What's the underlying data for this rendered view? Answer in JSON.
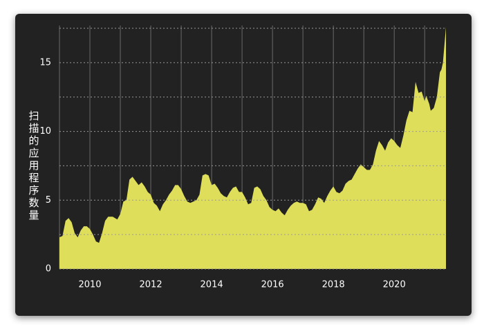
{
  "chart_data": {
    "type": "area",
    "y_label": "扫描的应用程序数量",
    "color": "#dede5a",
    "x": [
      2009.0,
      2009.1,
      2009.2,
      2009.3,
      2009.4,
      2009.5,
      2009.6,
      2009.7,
      2009.8,
      2009.9,
      2010.0,
      2010.1,
      2010.2,
      2010.3,
      2010.4,
      2010.5,
      2010.6,
      2010.75,
      2010.9,
      2011.0,
      2011.1,
      2011.2,
      2011.3,
      2011.4,
      2011.5,
      2011.6,
      2011.7,
      2011.8,
      2011.9,
      2012.0,
      2012.1,
      2012.2,
      2012.3,
      2012.4,
      2012.5,
      2012.6,
      2012.7,
      2012.8,
      2012.9,
      2013.0,
      2013.1,
      2013.2,
      2013.3,
      2013.4,
      2013.5,
      2013.6,
      2013.7,
      2013.8,
      2013.9,
      2014.0,
      2014.1,
      2014.2,
      2014.3,
      2014.4,
      2014.5,
      2014.6,
      2014.7,
      2014.8,
      2014.9,
      2015.0,
      2015.1,
      2015.2,
      2015.3,
      2015.4,
      2015.5,
      2015.6,
      2015.7,
      2015.8,
      2015.9,
      2016.0,
      2016.1,
      2016.2,
      2016.3,
      2016.4,
      2016.5,
      2016.6,
      2016.7,
      2016.8,
      2016.9,
      2017.0,
      2017.1,
      2017.2,
      2017.3,
      2017.4,
      2017.5,
      2017.6,
      2017.7,
      2017.8,
      2017.9,
      2018.0,
      2018.1,
      2018.2,
      2018.3,
      2018.4,
      2018.5,
      2018.6,
      2018.7,
      2018.8,
      2018.9,
      2019.0,
      2019.1,
      2019.2,
      2019.3,
      2019.4,
      2019.5,
      2019.6,
      2019.7,
      2019.8,
      2019.9,
      2020.0,
      2020.1,
      2020.2,
      2020.3,
      2020.4,
      2020.5,
      2020.6,
      2020.7,
      2020.8,
      2020.9,
      2021.0,
      2021.05,
      2021.15,
      2021.2,
      2021.3,
      2021.4,
      2021.5,
      2021.55,
      2021.6,
      2021.7
    ],
    "values": [
      2.3,
      2.4,
      3.5,
      3.7,
      3.4,
      2.6,
      2.3,
      2.8,
      3.1,
      3.1,
      2.9,
      2.5,
      2.0,
      1.9,
      2.6,
      3.5,
      3.8,
      3.8,
      3.6,
      4.0,
      4.9,
      5.0,
      6.5,
      6.7,
      6.4,
      6.1,
      6.3,
      6.0,
      5.6,
      5.4,
      4.8,
      4.6,
      4.2,
      4.7,
      5.0,
      5.4,
      5.7,
      6.1,
      6.1,
      5.8,
      5.3,
      4.9,
      4.8,
      4.9,
      5.0,
      5.4,
      6.8,
      6.9,
      6.8,
      6.1,
      6.2,
      5.9,
      5.5,
      5.3,
      5.2,
      5.6,
      5.9,
      6.0,
      5.6,
      5.6,
      5.2,
      4.7,
      4.8,
      5.9,
      6.0,
      5.8,
      5.3,
      5.0,
      4.5,
      4.3,
      4.2,
      4.4,
      4.1,
      3.9,
      4.3,
      4.6,
      4.8,
      4.9,
      4.8,
      4.8,
      4.7,
      4.2,
      4.3,
      4.7,
      5.2,
      5.1,
      4.8,
      5.3,
      5.7,
      6.0,
      5.6,
      5.5,
      5.7,
      6.2,
      6.4,
      6.5,
      6.9,
      7.3,
      7.6,
      7.4,
      7.2,
      7.2,
      7.6,
      8.6,
      9.3,
      9.0,
      8.6,
      9.2,
      9.5,
      9.3,
      9.0,
      8.8,
      9.7,
      10.8,
      11.5,
      11.4,
      13.6,
      12.8,
      12.9,
      12.2,
      12.6,
      12.0,
      11.5,
      11.7,
      12.5,
      14.3,
      14.5,
      15.0,
      17.6
    ],
    "xlim": [
      2009,
      2021.7
    ],
    "xticks": [
      2010,
      2012,
      2014,
      2016,
      2018,
      2020
    ],
    "xminorticks": [
      2009,
      2011,
      2013,
      2015,
      2017,
      2019,
      2021
    ],
    "ylim": [
      0,
      17.7
    ],
    "yticks": [
      0,
      5,
      10,
      15
    ],
    "yminorticks": [
      2.5,
      7.5,
      12.5,
      17.5
    ],
    "grid": true
  }
}
